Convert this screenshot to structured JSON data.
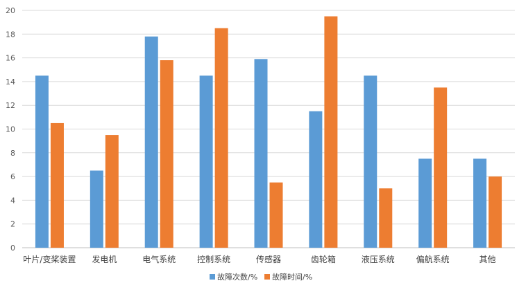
{
  "chart_data": {
    "type": "bar",
    "categories": [
      "叶片/变桨装置",
      "发电机",
      "电气系统",
      "控制系统",
      "传感器",
      "齿轮箱",
      "液压系统",
      "偏航系统",
      "其他"
    ],
    "series": [
      {
        "name": "故障次数/%",
        "color": "#5b9bd5",
        "values": [
          14.5,
          6.5,
          17.8,
          14.5,
          15.9,
          11.5,
          14.5,
          7.5,
          7.5
        ]
      },
      {
        "name": "故障时间/%",
        "color": "#ed7d31",
        "values": [
          10.5,
          9.5,
          15.8,
          18.5,
          5.5,
          19.5,
          5.0,
          13.5,
          6.0
        ]
      }
    ],
    "ylim": [
      0,
      20
    ],
    "yticks": [
      0,
      2,
      4,
      6,
      8,
      10,
      12,
      14,
      16,
      18,
      20
    ],
    "grid": true,
    "legend": "bottom-center",
    "title": "",
    "xlabel": "",
    "ylabel": ""
  }
}
